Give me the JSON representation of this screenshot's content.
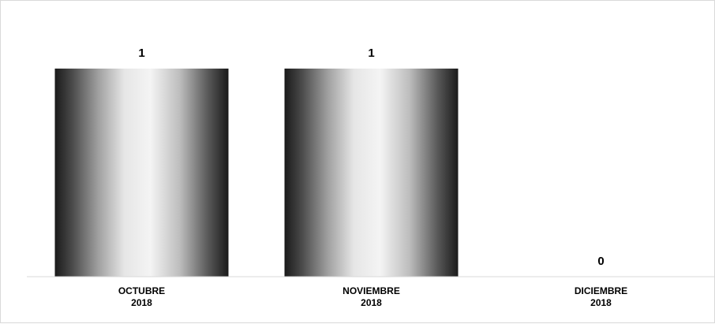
{
  "chart_data": {
    "type": "bar",
    "categories": [
      [
        "OCTUBRE",
        "2018"
      ],
      [
        "NOVIEMBRE",
        "2018"
      ],
      [
        "DICIEMBRE",
        "2018"
      ]
    ],
    "values": [
      1,
      1,
      0
    ],
    "data_labels": [
      "1",
      "1",
      "0"
    ],
    "title": "",
    "xlabel": "",
    "ylabel": "",
    "ylim": [
      0,
      1
    ],
    "grid": false,
    "legend": "none",
    "bar_fill": "metallic gradient",
    "colors": {
      "bar_dark": "#1a1a1a",
      "bar_light": "#f4f4f4",
      "axis": "#d9d9d9",
      "text": "#000000"
    }
  }
}
